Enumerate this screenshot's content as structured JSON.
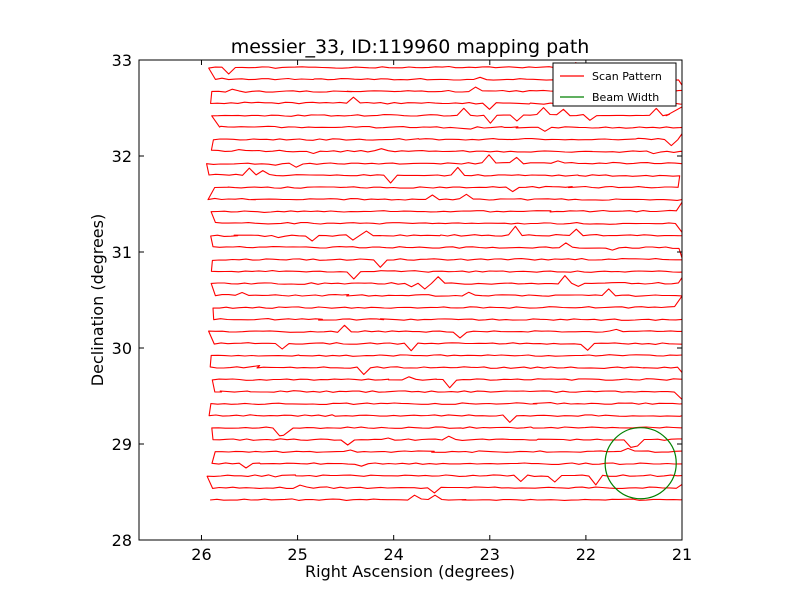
{
  "chart_data": {
    "type": "line",
    "title": "messier_33, ID:119960 mapping path",
    "xlabel": "Right Ascension (degrees)",
    "ylabel": "Declination (degrees)",
    "xlim": [
      26.65,
      21.0
    ],
    "ylim": [
      28,
      33
    ],
    "x_inverted": true,
    "xticks": [
      26,
      25,
      24,
      23,
      22,
      21
    ],
    "yticks": [
      28,
      29,
      30,
      31,
      32,
      33
    ],
    "grid": false,
    "legend_position": "top-right",
    "colors": {
      "scan": "#ff0000",
      "beam": "#008000"
    },
    "series": [
      {
        "name": "Scan Pattern",
        "kind": "raster",
        "ra_min": 25.9,
        "ra_max": 21.0,
        "dec_min": 28.42,
        "dec_max": 32.93,
        "row_step": 0.125
      },
      {
        "name": "Beam Width",
        "kind": "circle",
        "center_ra": 21.43,
        "center_dec": 28.8,
        "radius_deg": 0.37
      }
    ]
  }
}
